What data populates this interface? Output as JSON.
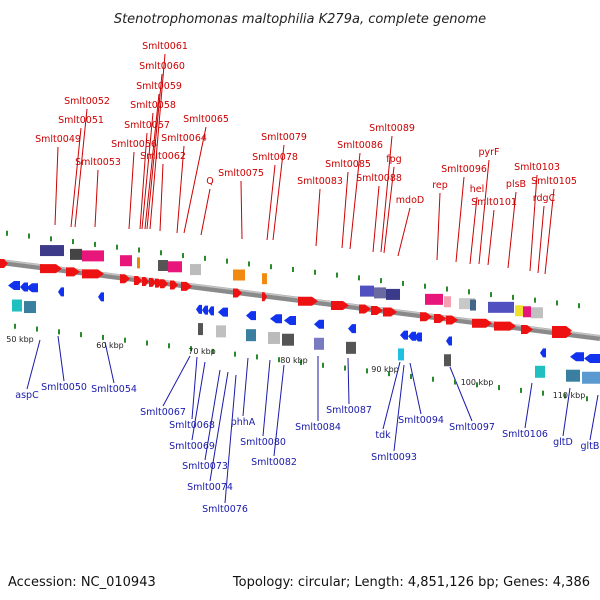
{
  "title": "Stenotrophomonas maltophilia K279a, complete genome",
  "footer": {
    "accession": "Accession: NC_010943",
    "summary": "Topology: circular; Length: 4,851,126 bp; Genes: 4,386"
  },
  "colors": {
    "forward_label": "#cc0000",
    "reverse_label": "#1a1aaa",
    "forward_arrow": "#ee1111",
    "reverse_arrow": "#1133ee",
    "backbone": "#888888",
    "tick": "#2a8a2a"
  },
  "scale_labels": [
    "50 kbp",
    "60 kbp",
    "70 kbp",
    "80 kbp",
    "90 kbp",
    "100 kbp",
    "110 kbp"
  ],
  "forward_labels": [
    "Smlt0061",
    "Smlt0060",
    "Smlt0059",
    "Smlt0058",
    "Smlt0057",
    "Smlt0056",
    "Smlt0052",
    "Smlt0051",
    "Smlt0049",
    "Smlt0053",
    "Smlt0065",
    "Smlt0064",
    "Smlt0062",
    "Q",
    "Smlt0079",
    "Smlt0078",
    "Smlt0075",
    "Smlt0089",
    "Smlt0086",
    "fpg",
    "Smlt0085",
    "Smlt0088",
    "Smlt0083",
    "mdoD",
    "pyrF",
    "Smlt0096",
    "rep",
    "hel",
    "Smlt0101",
    "Smlt0103",
    "plsB",
    "Smlt0105",
    "rdgC"
  ],
  "reverse_labels": [
    "aspC",
    "Smlt0050",
    "Smlt0054",
    "Smlt0067",
    "Smlt0068",
    "Smlt0069",
    "Smlt0073",
    "Smlt0074",
    "Smlt0076",
    "phhA",
    "Smlt0080",
    "Smlt0082",
    "Smlt0084",
    "Smlt0087",
    "tdk",
    "Smlt0093",
    "Smlt0094",
    "Smlt0097",
    "Smlt0106",
    "gltD",
    "gltB"
  ]
}
